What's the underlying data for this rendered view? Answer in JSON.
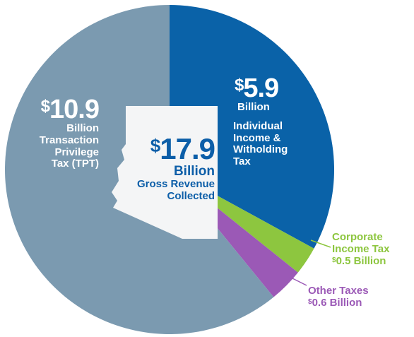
{
  "chart_data": {
    "type": "pie",
    "total": {
      "amount": "17.9",
      "unit": "Billion",
      "description": "Gross Revenue Collected"
    },
    "slices": [
      {
        "name": "Individual Income & Witholding Tax",
        "value": 5.9,
        "amount": "5.9",
        "unit": "Billion",
        "color": "#0a62a8"
      },
      {
        "name": "Corporate Income Tax",
        "value": 0.5,
        "amount": "0.5",
        "unit": "Billion",
        "color": "#8dc63f"
      },
      {
        "name": "Other Taxes",
        "value": 0.6,
        "amount": "0.6",
        "unit": "Billion",
        "color": "#9b59b6"
      },
      {
        "name": "Transaction Privilege Tax (TPT)",
        "value": 10.9,
        "amount": "10.9",
        "unit": "Billion",
        "color": "#7b9ab0"
      }
    ],
    "labels": {
      "tpt_line1": "Transaction",
      "tpt_line2": "Privilege",
      "tpt_line3": "Tax (TPT)",
      "total_line1": "Gross Revenue",
      "total_line2": "Collected",
      "ind_line1": "Individual",
      "ind_line2": "Income &",
      "ind_line3": "Witholding",
      "ind_line4": "Tax",
      "corp_line1": "Corporate",
      "corp_line2": "Income Tax",
      "other_line1": "Other Taxes"
    },
    "currency_symbol": "$"
  }
}
